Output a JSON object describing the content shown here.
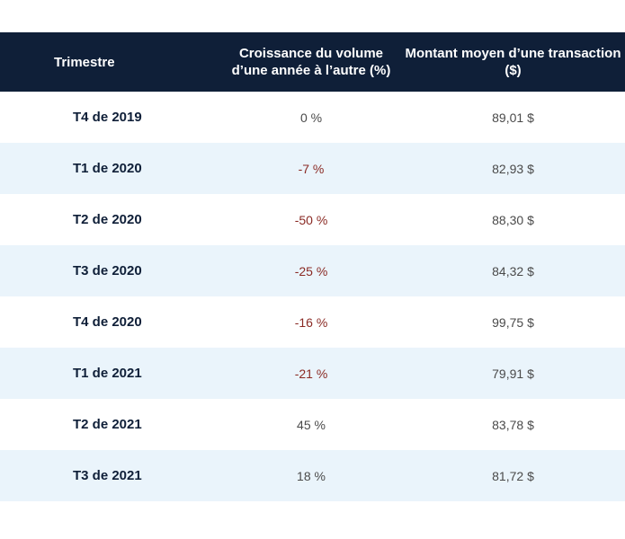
{
  "table": {
    "headers": {
      "quarter": "Trimestre",
      "growth": "Croissance du volume d’une année à l’autre (%)",
      "avg_amount": "Montant moyen d’une transaction ($)"
    },
    "rows": [
      {
        "quarter": "T4 de 2019",
        "growth": "0 %",
        "avg_amount": "89,01 $"
      },
      {
        "quarter": "T1 de 2020",
        "growth": "-7 %",
        "avg_amount": "82,93 $"
      },
      {
        "quarter": "T2 de 2020",
        "growth": "-50 %",
        "avg_amount": "88,30 $"
      },
      {
        "quarter": "T3 de 2020",
        "growth": "-25 %",
        "avg_amount": "84,32 $"
      },
      {
        "quarter": "T4 de 2020",
        "growth": "-16 %",
        "avg_amount": "99,75 $"
      },
      {
        "quarter": "T1 de 2021",
        "growth": "-21 %",
        "avg_amount": "79,91 $"
      },
      {
        "quarter": "T2 de 2021",
        "growth": "45 %",
        "avg_amount": "83,78 $"
      },
      {
        "quarter": "T3 de 2021",
        "growth": "18 %",
        "avg_amount": "81,72 $"
      }
    ]
  },
  "colors": {
    "header_bg": "#0f1f38",
    "alt_row_bg": "#eaf4fb",
    "negative": "#8a2a24"
  }
}
